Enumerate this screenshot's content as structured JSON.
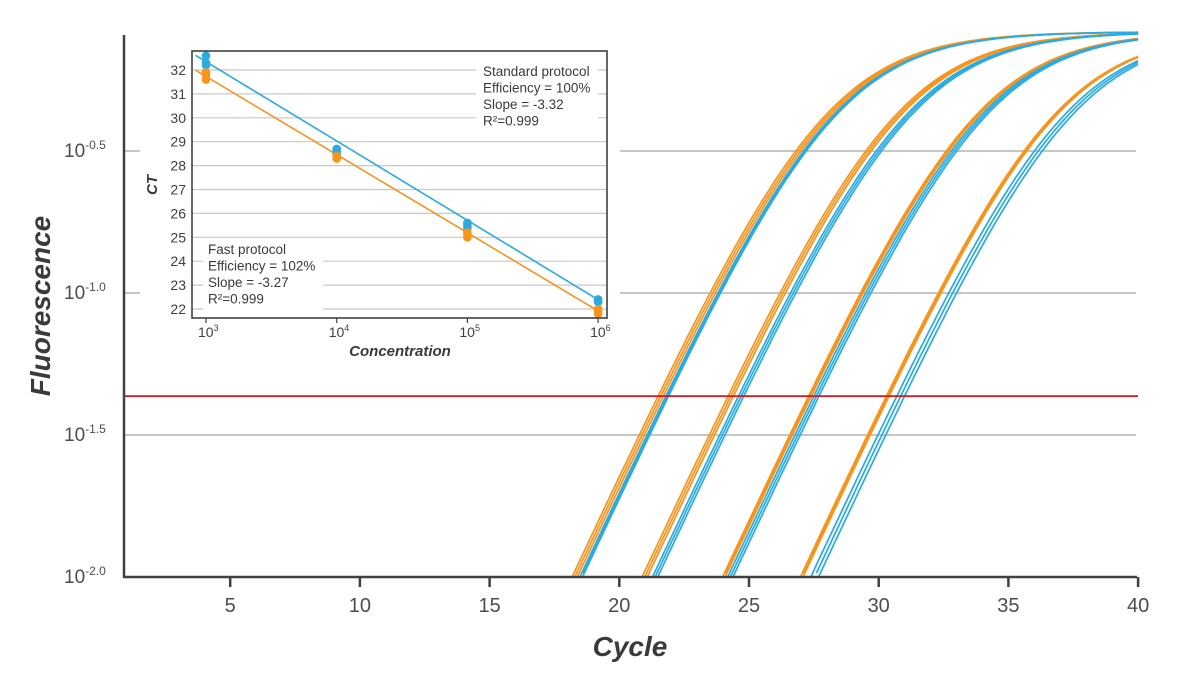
{
  "chart_data": [
    {
      "type": "line",
      "xlabel": "Cycle",
      "ylabel": "Fluorescence",
      "y_scale": "log10",
      "xlim": [
        1,
        40
      ],
      "ylim_log10": [
        -2.0,
        -0.1
      ],
      "xticks": [
        5,
        10,
        15,
        20,
        25,
        30,
        35,
        40
      ],
      "yticks": [
        {
          "base": "10",
          "exp": "-2.0",
          "value_log10": -2.0
        },
        {
          "base": "10",
          "exp": "-1.5",
          "value_log10": -1.5
        },
        {
          "base": "10",
          "exp": "-1.0",
          "value_log10": -1.0
        },
        {
          "base": "10",
          "exp": "-0.5",
          "value_log10": -0.5
        }
      ],
      "grid": "horizontal",
      "threshold_log10": -1.363,
      "threshold_color": "#d7191f",
      "series": [
        {
          "color": "#f7941d",
          "threshold_cycles": [
            21.5,
            21.6,
            21.7,
            24.2,
            24.3,
            24.4,
            27.3,
            27.35,
            27.4,
            30.3,
            30.35,
            30.4
          ]
        },
        {
          "color": "#29abe2",
          "threshold_cycles": [
            21.8,
            21.85,
            21.9,
            24.6,
            24.7,
            24.8,
            27.5,
            27.6,
            27.7,
            30.7,
            30.85,
            31.0
          ]
        }
      ]
    },
    {
      "type": "scatter",
      "xlabel": "Concentration",
      "ylabel": "CT",
      "x_scale": "log10",
      "xticks": [
        {
          "base": "10",
          "exp": "3",
          "value_log10": 3
        },
        {
          "base": "10",
          "exp": "4",
          "value_log10": 4
        },
        {
          "base": "10",
          "exp": "5",
          "value_log10": 5
        },
        {
          "base": "10",
          "exp": "6",
          "value_log10": 6
        }
      ],
      "yticks": [
        22,
        23,
        24,
        25,
        26,
        27,
        28,
        29,
        30,
        31,
        32
      ],
      "ylim": [
        21.6,
        32.8
      ],
      "grid": "horizontal",
      "series": [
        {
          "name": "Standard protocol",
          "color": "#29abe2",
          "points": [
            [
              3,
              32.6
            ],
            [
              3,
              32.3
            ],
            [
              3,
              32.2
            ],
            [
              4,
              28.7
            ],
            [
              4,
              28.6
            ],
            [
              4,
              28.5
            ],
            [
              5,
              25.6
            ],
            [
              5,
              25.5
            ],
            [
              5,
              25.4
            ],
            [
              6,
              22.4
            ],
            [
              6,
              22.3
            ],
            [
              6,
              22.3
            ]
          ],
          "fit": {
            "slope": -3.32,
            "intercept": 42.31
          },
          "annotation": [
            "Standard protocol",
            "Efficiency = 100%",
            "Slope = -3.32",
            "R²=0.999"
          ]
        },
        {
          "name": "Fast protocol",
          "color": "#f7941d",
          "points": [
            [
              3,
              31.9
            ],
            [
              3,
              31.8
            ],
            [
              3,
              31.6
            ],
            [
              4,
              28.3
            ],
            [
              4,
              28.3
            ],
            [
              4,
              28.4
            ],
            [
              5,
              25.2
            ],
            [
              5,
              25.0
            ],
            [
              5,
              25.1
            ],
            [
              6,
              22.0
            ],
            [
              6,
              21.8
            ],
            [
              6,
              21.9
            ]
          ],
          "fit": {
            "slope": -3.27,
            "intercept": 41.54
          },
          "annotation": [
            "Fast protocol",
            "Efficiency = 102%",
            "Slope = -3.27",
            "R²=0.999"
          ]
        }
      ]
    }
  ]
}
